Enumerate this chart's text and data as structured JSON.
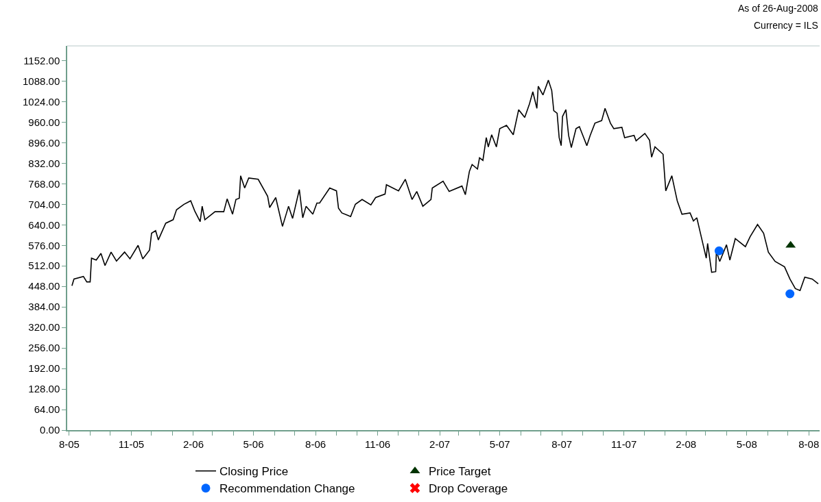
{
  "chart_data": {
    "type": "line",
    "annotations": [
      "As of 26-Aug-2008",
      "Currency = ILS"
    ],
    "xlim": [
      "2005-07-29",
      "2008-08-17"
    ],
    "ylim": [
      0,
      1198
    ],
    "xticks": [
      {
        "value": "2005-08-01",
        "label": "8-05"
      },
      {
        "value": "2005-09-01",
        "label": null
      },
      {
        "value": "2005-10-01",
        "label": null
      },
      {
        "value": "2005-11-01",
        "label": "11-05"
      },
      {
        "value": "2005-12-01",
        "label": null
      },
      {
        "value": "2006-01-01",
        "label": null
      },
      {
        "value": "2006-02-01",
        "label": "2-06"
      },
      {
        "value": "2006-03-01",
        "label": null
      },
      {
        "value": "2006-04-01",
        "label": null
      },
      {
        "value": "2006-05-01",
        "label": "5-06"
      },
      {
        "value": "2006-06-01",
        "label": null
      },
      {
        "value": "2006-07-01",
        "label": null
      },
      {
        "value": "2006-08-01",
        "label": "8-06"
      },
      {
        "value": "2006-09-01",
        "label": null
      },
      {
        "value": "2006-10-01",
        "label": null
      },
      {
        "value": "2006-11-01",
        "label": "11-06"
      },
      {
        "value": "2006-12-01",
        "label": null
      },
      {
        "value": "2007-01-01",
        "label": null
      },
      {
        "value": "2007-02-01",
        "label": "2-07"
      },
      {
        "value": "2007-03-01",
        "label": null
      },
      {
        "value": "2007-04-01",
        "label": null
      },
      {
        "value": "2007-05-01",
        "label": "5-07"
      },
      {
        "value": "2007-06-01",
        "label": null
      },
      {
        "value": "2007-07-01",
        "label": null
      },
      {
        "value": "2007-08-01",
        "label": "8-07"
      },
      {
        "value": "2007-09-01",
        "label": null
      },
      {
        "value": "2007-10-01",
        "label": null
      },
      {
        "value": "2007-11-01",
        "label": "11-07"
      },
      {
        "value": "2007-12-01",
        "label": null
      },
      {
        "value": "2008-01-01",
        "label": null
      },
      {
        "value": "2008-02-01",
        "label": "2-08"
      },
      {
        "value": "2008-03-01",
        "label": null
      },
      {
        "value": "2008-04-01",
        "label": null
      },
      {
        "value": "2008-05-01",
        "label": "5-08"
      },
      {
        "value": "2008-06-01",
        "label": null
      },
      {
        "value": "2008-07-01",
        "label": null
      },
      {
        "value": "2008-08-01",
        "label": "8-08"
      }
    ],
    "yticks": [
      {
        "value": 0,
        "label": "0.00"
      },
      {
        "value": 64,
        "label": "64.00"
      },
      {
        "value": 128,
        "label": "128.00"
      },
      {
        "value": 192,
        "label": "192.00"
      },
      {
        "value": 256,
        "label": "256.00"
      },
      {
        "value": 320,
        "label": "320.00"
      },
      {
        "value": 384,
        "label": "384.00"
      },
      {
        "value": 448,
        "label": "448.00"
      },
      {
        "value": 512,
        "label": "512.00"
      },
      {
        "value": 576,
        "label": "576.00"
      },
      {
        "value": 640,
        "label": "640.00"
      },
      {
        "value": 704,
        "label": "704.00"
      },
      {
        "value": 768,
        "label": "768.00"
      },
      {
        "value": 832,
        "label": "832.00"
      },
      {
        "value": 896,
        "label": "896.00"
      },
      {
        "value": 960,
        "label": "960.00"
      },
      {
        "value": 1024,
        "label": "1024.00"
      },
      {
        "value": 1088,
        "label": "1088.00"
      },
      {
        "value": 1152,
        "label": "1152.00"
      }
    ],
    "legend": "bottom",
    "series": [
      {
        "name": "Closing Price",
        "color": "#000000",
        "marker": "none",
        "x": [
          "2005-08-05",
          "2005-08-08",
          "2005-08-22",
          "2005-08-27",
          "2005-09-01",
          "2005-09-03",
          "2005-09-10",
          "2005-09-17",
          "2005-09-23",
          "2005-10-02",
          "2005-10-10",
          "2005-10-22",
          "2005-10-30",
          "2005-11-11",
          "2005-11-18",
          "2005-11-28",
          "2005-12-01",
          "2005-12-07",
          "2005-12-11",
          "2005-12-22",
          "2006-01-02",
          "2006-01-07",
          "2006-01-18",
          "2006-01-28",
          "2006-02-03",
          "2006-02-11",
          "2006-02-14",
          "2006-02-18",
          "2006-03-05",
          "2006-03-18",
          "2006-03-23",
          "2006-03-31",
          "2006-04-05",
          "2006-04-10",
          "2006-04-12",
          "2006-04-18",
          "2006-04-24",
          "2006-05-08",
          "2006-05-22",
          "2006-05-25",
          "2006-06-03",
          "2006-06-13",
          "2006-06-22",
          "2006-06-28",
          "2006-07-08",
          "2006-07-13",
          "2006-07-18",
          "2006-07-28",
          "2006-08-03",
          "2006-08-07",
          "2006-08-22",
          "2006-09-01",
          "2006-09-04",
          "2006-09-09",
          "2006-09-22",
          "2006-09-29",
          "2006-10-09",
          "2006-10-22",
          "2006-10-29",
          "2006-11-12",
          "2006-11-14",
          "2006-12-02",
          "2006-12-12",
          "2006-12-22",
          "2006-12-29",
          "2007-01-07",
          "2007-01-19",
          "2007-01-21",
          "2007-02-06",
          "2007-02-15",
          "2007-03-06",
          "2007-03-11",
          "2007-03-14",
          "2007-03-17",
          "2007-03-21",
          "2007-03-29",
          "2007-04-01",
          "2007-04-06",
          "2007-04-11",
          "2007-04-14",
          "2007-04-19",
          "2007-04-26",
          "2007-05-01",
          "2007-05-11",
          "2007-05-21",
          "2007-05-29",
          "2007-06-07",
          "2007-06-14",
          "2007-06-19",
          "2007-06-25",
          "2007-06-27",
          "2007-07-04",
          "2007-07-12",
          "2007-07-17",
          "2007-07-20",
          "2007-07-25",
          "2007-07-28",
          "2007-07-31",
          "2007-08-02",
          "2007-08-07",
          "2007-08-11",
          "2007-08-15",
          "2007-08-22",
          "2007-08-27",
          "2007-09-02",
          "2007-09-07",
          "2007-09-12",
          "2007-09-19",
          "2007-09-29",
          "2007-10-04",
          "2007-10-12",
          "2007-10-17",
          "2007-10-29",
          "2007-11-02",
          "2007-11-16",
          "2007-11-19",
          "2007-12-02",
          "2007-12-09",
          "2007-12-12",
          "2007-12-17",
          "2007-12-29",
          "2008-01-02",
          "2008-01-11",
          "2008-01-16",
          "2008-01-19",
          "2008-01-26",
          "2008-02-07",
          "2008-02-12",
          "2008-02-17",
          "2008-02-27",
          "2008-03-02",
          "2008-03-04",
          "2008-03-10",
          "2008-03-16",
          "2008-03-17",
          "2008-03-22",
          "2008-04-01",
          "2008-04-06",
          "2008-04-14",
          "2008-04-29",
          "2008-05-06",
          "2008-05-17",
          "2008-05-26",
          "2008-06-02",
          "2008-06-12",
          "2008-06-26",
          "2008-07-04",
          "2008-07-07",
          "2008-07-12",
          "2008-07-19",
          "2008-07-26",
          "2008-08-06",
          "2008-08-15"
        ],
        "values": [
          450,
          471,
          479,
          462,
          462,
          536,
          530,
          551,
          513,
          555,
          527,
          555,
          534,
          576,
          534,
          561,
          614,
          622,
          593,
          645,
          656,
          687,
          704,
          715,
          683,
          650,
          698,
          656,
          681,
          681,
          721,
          673,
          719,
          723,
          793,
          755,
          786,
          782,
          729,
          694,
          725,
          635,
          698,
          660,
          750,
          662,
          698,
          673,
          708,
          708,
          755,
          746,
          692,
          677,
          666,
          704,
          719,
          702,
          725,
          736,
          765,
          746,
          782,
          719,
          744,
          698,
          719,
          755,
          776,
          744,
          761,
          734,
          771,
          807,
          828,
          814,
          849,
          841,
          912,
          883,
          921,
          883,
          940,
          950,
          921,
          999,
          975,
          1017,
          1055,
          1003,
          1072,
          1045,
          1091,
          1059,
          996,
          988,
          912,
          887,
          978,
          999,
          919,
          881,
          940,
          946,
          914,
          887,
          919,
          957,
          965,
          1003,
          957,
          940,
          944,
          912,
          919,
          902,
          925,
          904,
          851,
          883,
          860,
          746,
          793,
          744,
          715,
          673,
          677,
          652,
          662,
          572,
          536,
          582,
          492,
          494,
          557,
          526,
          578,
          530,
          597,
          572,
          603,
          641,
          614,
          555,
          526,
          509,
          471,
          460,
          441,
          435,
          477,
          471,
          456
        ]
      },
      {
        "name": "Price Target",
        "type": "scatter",
        "color": "#003300",
        "marker": "triangle",
        "x": [
          "2008-07-05"
        ],
        "values": [
          576
        ]
      },
      {
        "name": "Recommendation Change",
        "type": "scatter",
        "color": "#0066ff",
        "marker": "circle",
        "x": [
          "2008-03-21",
          "2008-07-04"
        ],
        "values": [
          559,
          425
        ]
      },
      {
        "name": "Drop Coverage",
        "type": "scatter",
        "color": "#ff0000",
        "marker": "cross"
      }
    ]
  }
}
